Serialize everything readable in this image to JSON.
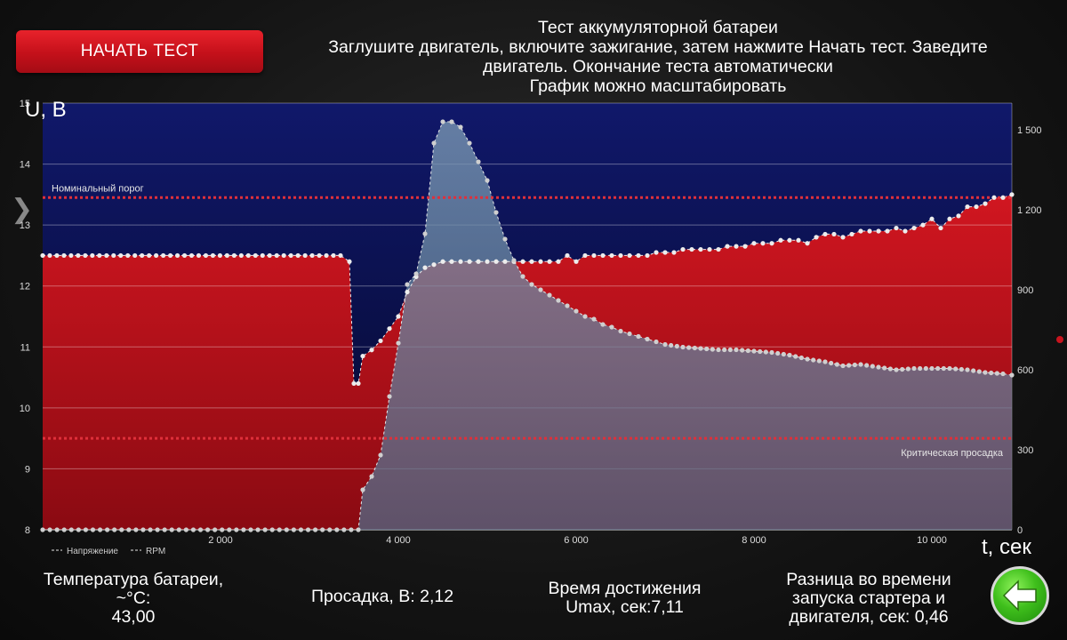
{
  "controls": {
    "start_button": "НАЧАТЬ ТЕСТ"
  },
  "header": {
    "title": "Тест аккумуляторной батареи",
    "line2": "Заглушите двигатель, включите зажигание, затем нажмите Начать тест. Заведите",
    "line3": "двигатель. Окончание теста автоматически",
    "line4": "График можно масштабировать"
  },
  "chart_data": {
    "type": "line",
    "ylabel": "U, В",
    "xlabel": "t, сек",
    "xlim": [
      0,
      10900
    ],
    "ylim": [
      8,
      15
    ],
    "y2lim": [
      0,
      1600
    ],
    "x_ticks": [
      2000,
      4000,
      6000,
      8000,
      10000
    ],
    "x_tick_labels": [
      "2 000",
      "4 000",
      "6 000",
      "8 000",
      "10 000"
    ],
    "y_ticks": [
      8,
      9,
      10,
      11,
      12,
      13,
      14,
      15
    ],
    "y_tick_labels": [
      "8",
      "9",
      "10",
      "11",
      "12",
      "13",
      "14",
      "15"
    ],
    "y2_ticks": [
      0,
      300,
      600,
      900,
      1200,
      1500
    ],
    "y2_tick_labels": [
      "0",
      "300",
      "600",
      "900",
      "1 200",
      "1 500"
    ],
    "legend": [
      "Напряжение",
      "RPM"
    ],
    "colors": {
      "voltage_fill": "#c8141e",
      "rpm_fill": "#6f8fa8",
      "points": "#ececec",
      "threshold": "#e0303a"
    },
    "thresholds": [
      {
        "label": "Номинальный порог",
        "y": 13.45
      },
      {
        "label": "Критическая просадка",
        "y": 9.5
      }
    ],
    "series": [
      {
        "name": "Напряжение",
        "x": [
          0,
          3350,
          3450,
          3500,
          3550,
          3600,
          3700,
          3800,
          3900,
          4000,
          4100,
          4200,
          4300,
          4400,
          4500,
          4600,
          4700,
          4800,
          4900,
          5000,
          5100,
          5200,
          5300,
          5400,
          5500,
          5600,
          5700,
          5800,
          5900,
          6000,
          6100,
          6200,
          6300,
          6400,
          6500,
          6600,
          6700,
          6800,
          6900,
          7000,
          7100,
          7200,
          7300,
          7400,
          7500,
          7600,
          7700,
          7800,
          7900,
          8000,
          8100,
          8200,
          8300,
          8400,
          8500,
          8600,
          8700,
          8800,
          8900,
          9000,
          9100,
          9200,
          9300,
          9400,
          9500,
          9600,
          9700,
          9800,
          9900,
          10000,
          10100,
          10200,
          10300,
          10400,
          10500,
          10600,
          10700,
          10800,
          10900
        ],
        "values": [
          12.5,
          12.5,
          12.4,
          10.4,
          10.4,
          10.85,
          10.95,
          11.1,
          11.3,
          11.5,
          11.9,
          12.15,
          12.3,
          12.35,
          12.4,
          12.4,
          12.4,
          12.4,
          12.4,
          12.4,
          12.4,
          12.4,
          12.4,
          12.4,
          12.4,
          12.4,
          12.4,
          12.4,
          12.5,
          12.4,
          12.5,
          12.5,
          12.5,
          12.5,
          12.5,
          12.5,
          12.5,
          12.5,
          12.55,
          12.55,
          12.55,
          12.6,
          12.6,
          12.6,
          12.6,
          12.6,
          12.65,
          12.65,
          12.65,
          12.7,
          12.7,
          12.7,
          12.75,
          12.75,
          12.75,
          12.7,
          12.8,
          12.85,
          12.85,
          12.8,
          12.85,
          12.9,
          12.9,
          12.9,
          12.9,
          12.95,
          12.9,
          12.95,
          13.0,
          13.1,
          12.95,
          13.1,
          13.15,
          13.3,
          13.3,
          13.35,
          13.45,
          13.45,
          13.5
        ]
      },
      {
        "name": "RPM",
        "x": [
          0,
          3550,
          3600,
          3700,
          3800,
          3900,
          4000,
          4100,
          4200,
          4300,
          4400,
          4500,
          4600,
          4700,
          4800,
          4900,
          5000,
          5100,
          5200,
          5300,
          5400,
          5500,
          5600,
          5700,
          5800,
          5900,
          6000,
          6100,
          6200,
          6300,
          6400,
          6500,
          6600,
          6700,
          6800,
          6900,
          7000,
          7200,
          7400,
          7600,
          7800,
          8000,
          8200,
          8400,
          8600,
          8800,
          9000,
          9200,
          9400,
          9600,
          9800,
          10000,
          10200,
          10400,
          10600,
          10800,
          10900
        ],
        "values": [
          0,
          0,
          150,
          200,
          280,
          500,
          700,
          920,
          960,
          1110,
          1450,
          1530,
          1530,
          1510,
          1450,
          1380,
          1310,
          1190,
          1090,
          1010,
          950,
          920,
          900,
          880,
          860,
          840,
          820,
          800,
          790,
          770,
          760,
          745,
          735,
          725,
          715,
          705,
          695,
          685,
          680,
          675,
          675,
          670,
          665,
          655,
          640,
          630,
          615,
          620,
          610,
          600,
          605,
          605,
          605,
          600,
          590,
          585,
          580
        ]
      }
    ]
  },
  "stats": {
    "temperature": {
      "line1": "Температура батареи,",
      "line2": "~°C:",
      "line3": "43,00"
    },
    "sag": "Просадка, В: 2,12",
    "time_umax": {
      "line1": "Время достижения",
      "line2": "Umax, сек:7,11"
    },
    "time_diff": {
      "line1": "Разница во времени",
      "line2": "запуска стартера и",
      "line3": "двигателя, сек: 0,46"
    }
  },
  "nav": {
    "back_icon": "arrow-left-icon",
    "side_icon": "chevron-right-icon"
  }
}
